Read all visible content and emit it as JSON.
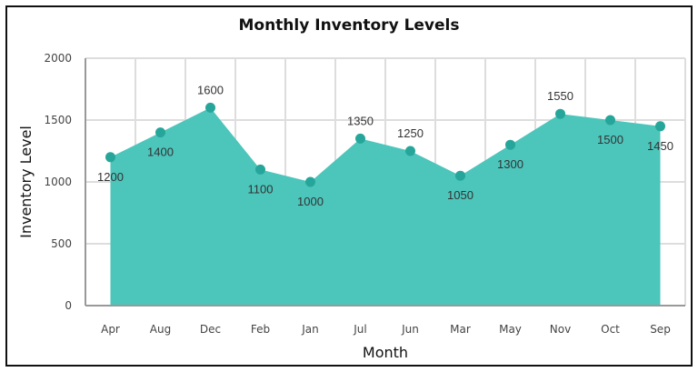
{
  "chart_data": {
    "type": "area",
    "title": "Monthly Inventory Levels",
    "xlabel": "Month",
    "ylabel": "Inventory Level",
    "categories": [
      "Apr",
      "Aug",
      "Dec",
      "Feb",
      "Jan",
      "Jul",
      "Jun",
      "Mar",
      "May",
      "Nov",
      "Oct",
      "Sep"
    ],
    "series": [
      {
        "name": "Inventory Level",
        "values": [
          1200,
          1400,
          1600,
          1100,
          1000,
          1350,
          1250,
          1050,
          1300,
          1550,
          1500,
          1450
        ]
      }
    ],
    "ylim": [
      0,
      2000
    ],
    "yticks": [
      0,
      500,
      1000,
      1500,
      2000
    ],
    "grid": true,
    "legend": "none",
    "colors": {
      "fill": "#4cc5bb",
      "point": "#26a69a"
    },
    "data_labels": [
      "1200",
      "1400",
      "1600",
      "1100",
      "1000",
      "1350",
      "1250",
      "1050",
      "1300",
      "1550",
      "1500",
      "1450"
    ]
  }
}
